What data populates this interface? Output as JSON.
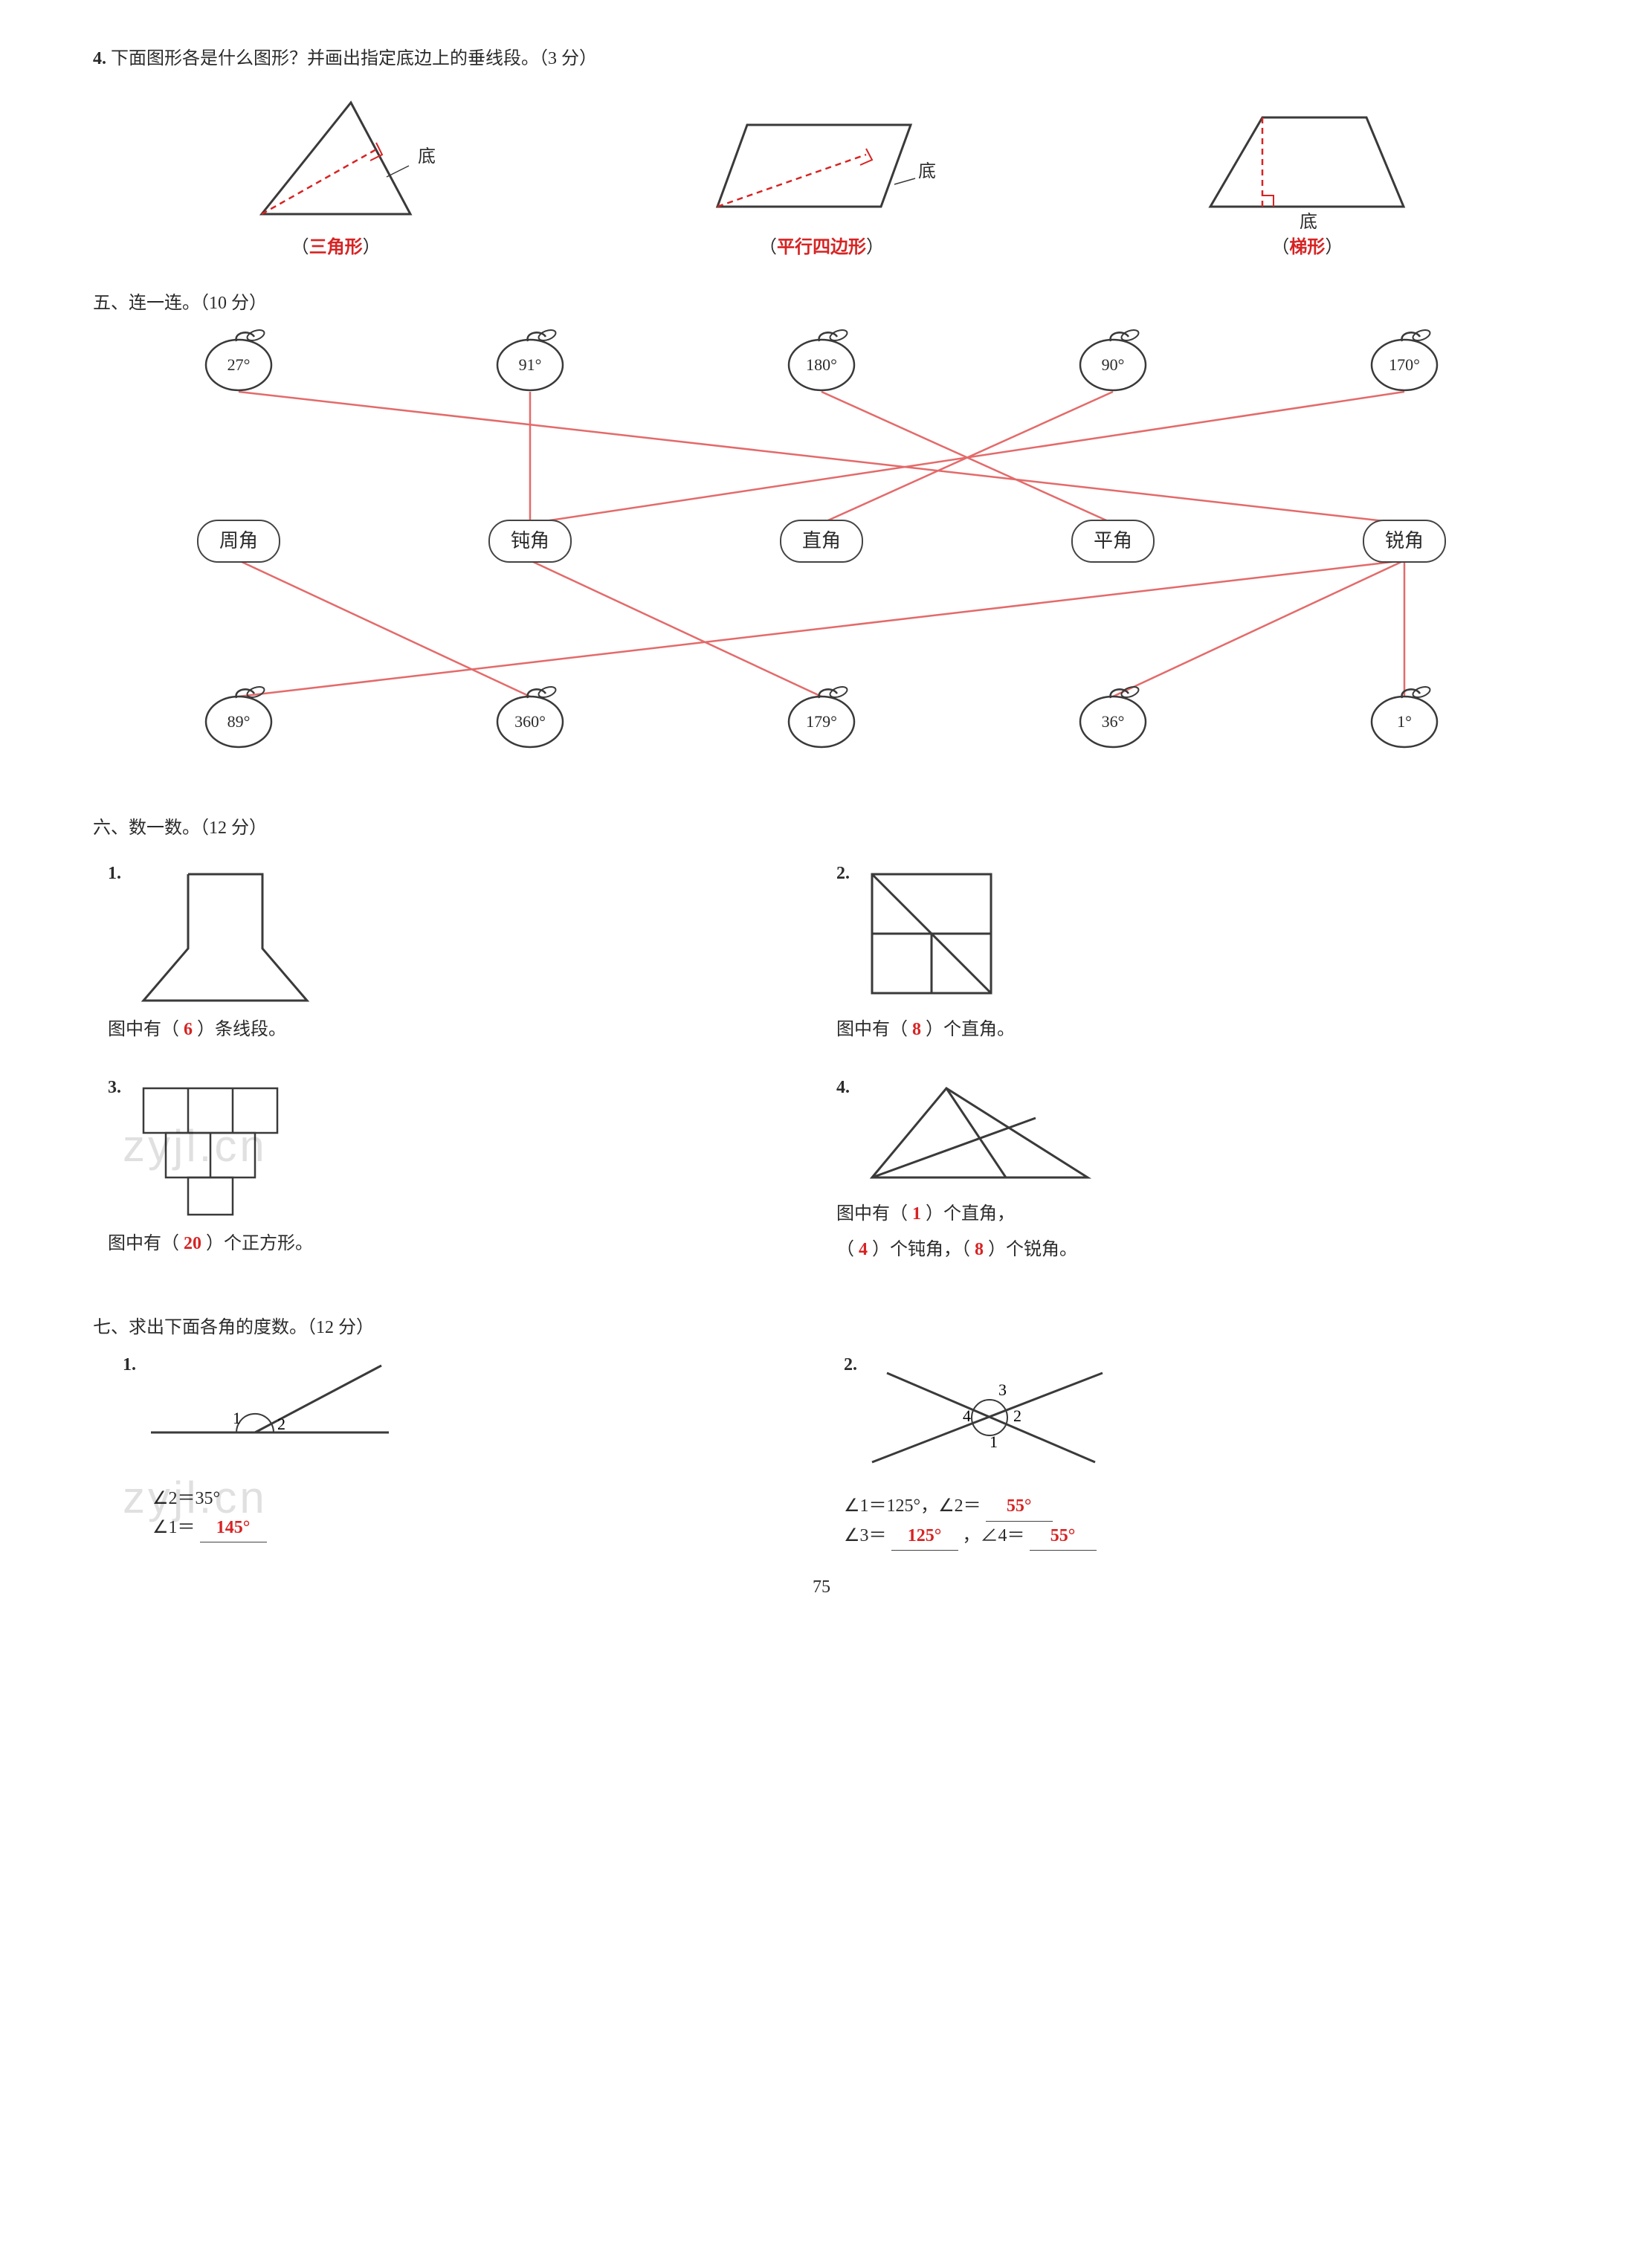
{
  "colors": {
    "text": "#2b2b2b",
    "answer_red": "#d72323",
    "dashed_red": "#d72323",
    "line_red": "#e46a6a",
    "shape_stroke": "#3a3a3a",
    "bg": "#ffffff"
  },
  "q4": {
    "number": "4.",
    "prompt": "下面图形各是什么图形？并画出指定底边上的垂线段。（3 分）",
    "label_di": "底",
    "shapes": [
      {
        "answer": "三角形"
      },
      {
        "answer": "平行四边形"
      },
      {
        "answer": "梯形"
      }
    ]
  },
  "s5": {
    "title": "五、连一连。（10 分）",
    "top_apples": [
      "27°",
      "91°",
      "180°",
      "90°",
      "170°"
    ],
    "categories": [
      "周角",
      "钝角",
      "直角",
      "平角",
      "锐角"
    ],
    "bottom_apples": [
      "89°",
      "360°",
      "179°",
      "36°",
      "1°"
    ],
    "lines_top_to_mid": [
      {
        "from": 0,
        "to": 4
      },
      {
        "from": 1,
        "to": 1
      },
      {
        "from": 2,
        "to": 3
      },
      {
        "from": 3,
        "to": 2
      },
      {
        "from": 4,
        "to": 1
      }
    ],
    "lines_bot_to_mid": [
      {
        "from": 0,
        "to": 4
      },
      {
        "from": 1,
        "to": 0
      },
      {
        "from": 2,
        "to": 1
      },
      {
        "from": 3,
        "to": 4
      },
      {
        "from": 4,
        "to": 4
      }
    ]
  },
  "s6": {
    "title": "六、数一数。（12 分）",
    "items": [
      {
        "num": "1.",
        "text_before": "图中有（",
        "answer": "6",
        "text_after": "）条线段。"
      },
      {
        "num": "2.",
        "text_before": "图中有（",
        "answer": "8",
        "text_after": "）个直角。"
      },
      {
        "num": "3.",
        "text_before": "图中有（",
        "answer": "20",
        "text_after": "）个正方形。"
      },
      {
        "num": "4.",
        "line1_before": "图中有（",
        "line1_answer": "1",
        "line1_after": "）个直角，",
        "line2_before": "（",
        "line2_a1": "4",
        "line2_mid": "）个钝角，（",
        "line2_a2": "8",
        "line2_after": "）个锐角。"
      }
    ]
  },
  "s7": {
    "title": "七、求出下面各角的度数。（12 分）",
    "item1": {
      "num": "1.",
      "labels": [
        "1",
        "2"
      ],
      "answer_line1": "∠2＝35°",
      "answer_line2_before": "∠1＝",
      "answer_line2_value": "145°"
    },
    "item2": {
      "num": "2.",
      "labels": [
        "1",
        "2",
        "3",
        "4"
      ],
      "line1_before": "∠1＝125°，∠2＝",
      "a2": "55°",
      "line2_before": "∠3＝",
      "a3": "125°",
      "line2_mid": "，∠4＝",
      "a4": "55°"
    }
  },
  "page_number": "75",
  "watermark_text": "zyjl.cn"
}
